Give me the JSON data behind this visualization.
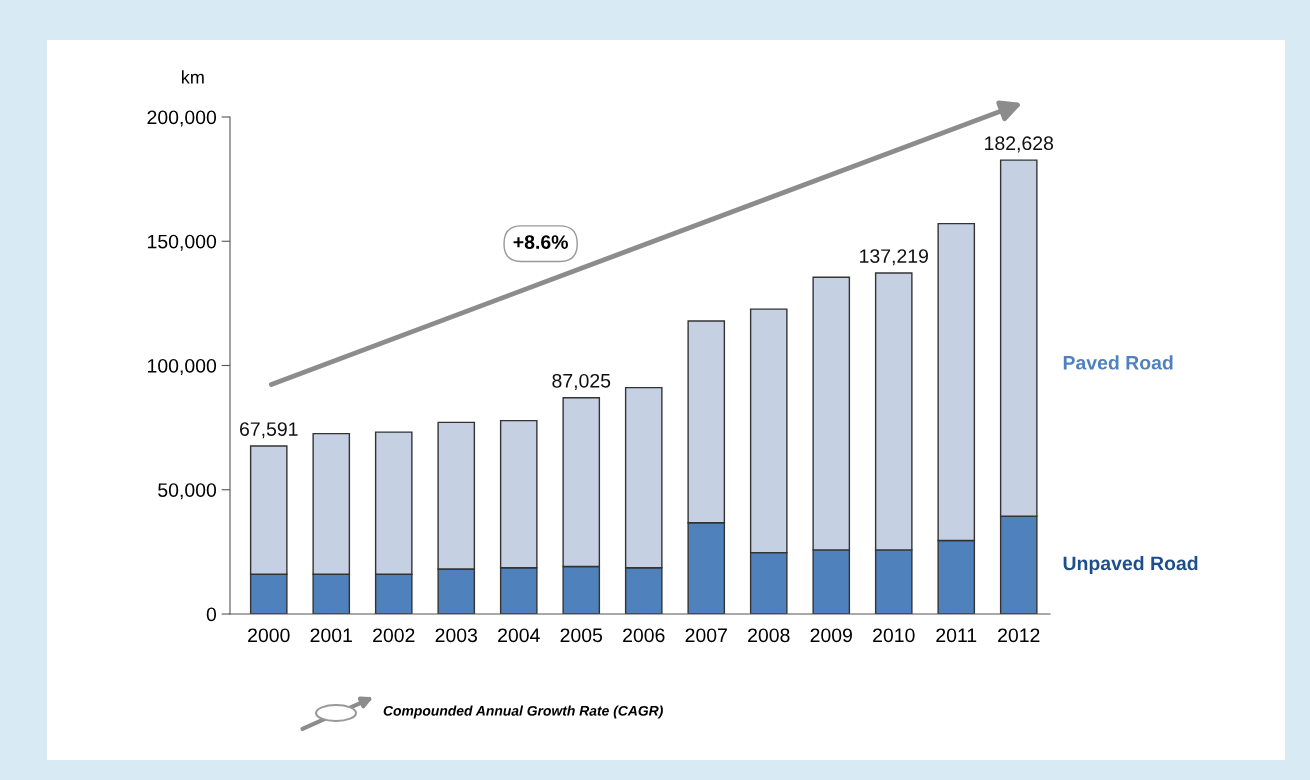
{
  "chart_data": {
    "type": "bar",
    "stacked": true,
    "ylabel": "km",
    "categories": [
      "2000",
      "2001",
      "2002",
      "2003",
      "2004",
      "2005",
      "2006",
      "2007",
      "2008",
      "2009",
      "2010",
      "2011",
      "2012"
    ],
    "series": [
      {
        "name": "Unpaved Road",
        "color": "#4f81bd",
        "values": [
          16000,
          16000,
          16000,
          18100,
          18600,
          19100,
          18600,
          36700,
          24700,
          25800,
          25800,
          29600,
          39400
        ]
      },
      {
        "name": "Paved Road",
        "color": "#c5d0e3",
        "values": [
          51591,
          56600,
          57200,
          59000,
          59200,
          67925,
          72500,
          81200,
          98000,
          109700,
          111419,
          127500,
          143228
        ]
      }
    ],
    "totals": [
      "67,591",
      null,
      null,
      null,
      null,
      "87,025",
      null,
      null,
      null,
      null,
      "137,219",
      null,
      "182,628"
    ],
    "ylim": [
      0,
      200000
    ],
    "yticks": [
      {
        "value": 0,
        "label": "0"
      },
      {
        "value": 50000,
        "label": "50,000"
      },
      {
        "value": 100000,
        "label": "100,000"
      },
      {
        "value": 150000,
        "label": "150,000"
      },
      {
        "value": 200000,
        "label": "200,000"
      }
    ],
    "grid": false,
    "legend": "right",
    "annotations": [
      "+8.6%",
      "Compounded Annual Growth Rate (CAGR)"
    ]
  }
}
